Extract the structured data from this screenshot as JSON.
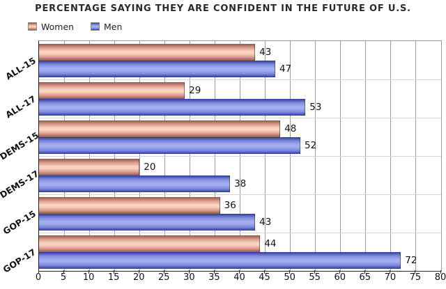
{
  "chart_data": {
    "type": "bar",
    "orientation": "horizontal",
    "title": "PERCENTAGE SAYING THEY ARE CONFIDENT IN THE FUTURE OF U.S.",
    "categories": [
      "ALL-15",
      "ALL-17",
      "DEMS-15",
      "DEMS-17",
      "GOP-15",
      "GOP-17"
    ],
    "series": [
      {
        "name": "Women",
        "values": [
          43,
          29,
          48,
          20,
          36,
          44
        ],
        "gradient": {
          "dark": "#8e584d",
          "mid": "#d99987",
          "light": "#fad2c1"
        }
      },
      {
        "name": "Men",
        "values": [
          47,
          53,
          52,
          38,
          43,
          72
        ],
        "gradient": {
          "dark": "#2c3a9d",
          "mid": "#7d88d9",
          "light": "#a3adf2"
        }
      }
    ],
    "xlim": [
      0,
      80
    ],
    "x_ticks": [
      0,
      5,
      10,
      15,
      20,
      25,
      30,
      35,
      40,
      45,
      50,
      55,
      60,
      65,
      70,
      75,
      80
    ],
    "grid": true,
    "value_labels": true,
    "legend_position": "top-left",
    "colors": {
      "grid_vertical": "#9a9a9a",
      "grid_horizontal": "#d6d6d6",
      "axis": "#222222",
      "text": "#111111"
    }
  }
}
